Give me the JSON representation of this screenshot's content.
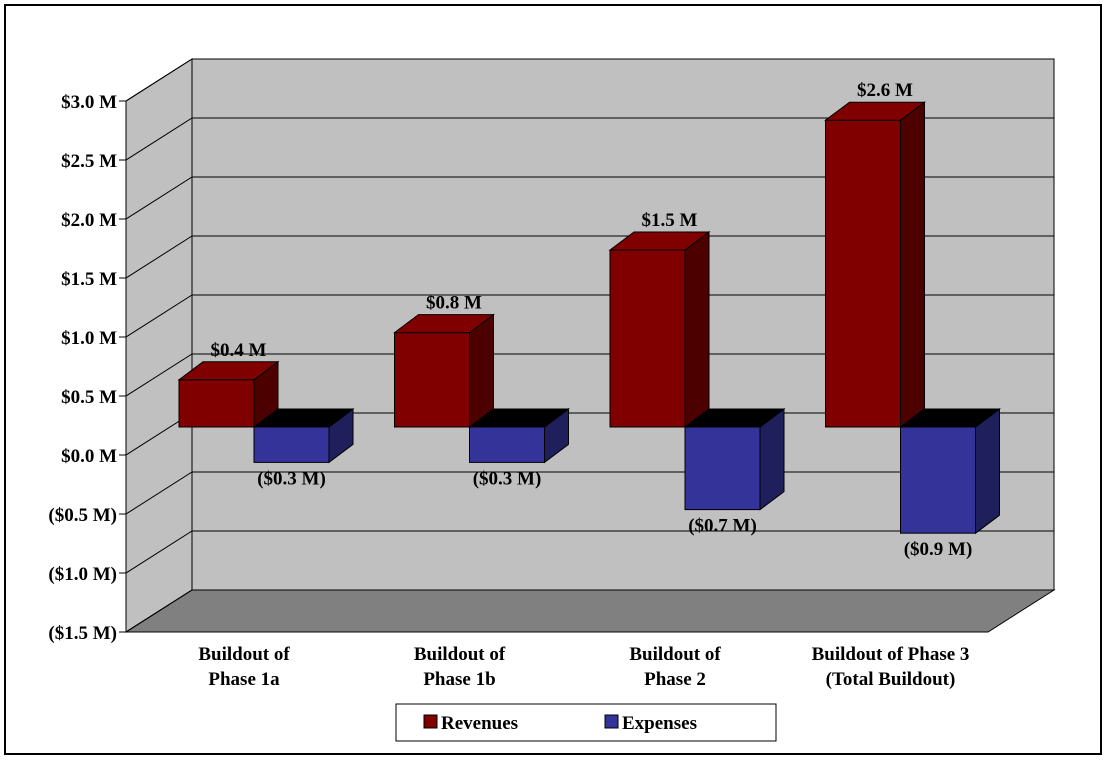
{
  "chart_data": {
    "type": "bar",
    "categories": [
      [
        "Buildout of",
        "Phase 1a"
      ],
      [
        "Buildout of",
        "Phase 1b"
      ],
      [
        "Buildout of",
        "Phase 2"
      ],
      [
        "Buildout of Phase 3",
        "(Total Buildout)"
      ]
    ],
    "series": [
      {
        "name": "Revenues",
        "values": [
          0.4,
          0.8,
          1.5,
          2.6
        ],
        "labels": [
          "$0.4 M",
          "$0.8 M",
          "$1.5 M",
          "$2.6 M"
        ],
        "color": "#800000"
      },
      {
        "name": "Expenses",
        "values": [
          -0.3,
          -0.3,
          -0.7,
          -0.9
        ],
        "labels": [
          "($0.3 M)",
          "($0.3 M)",
          "($0.7 M)",
          "($0.9 M)"
        ],
        "color": "#333399"
      }
    ],
    "yticks": [
      3.0,
      2.5,
      2.0,
      1.5,
      1.0,
      0.5,
      0.0,
      -0.5,
      -1.0,
      -1.5
    ],
    "ytick_labels": [
      "$3.0 M",
      "$2.5 M",
      "$2.0 M",
      "$1.5 M",
      "$1.0 M",
      "$0.5 M",
      "$0.0 M",
      "($0.5 M)",
      "($1.0 M)",
      "($1.5 M)"
    ],
    "ylim": [
      -1.5,
      3.0
    ],
    "grid": true,
    "legend": "bottom"
  },
  "colors": {
    "revenues_front": "#800000",
    "revenues_side": "#4d0000",
    "expenses_front": "#333399",
    "expenses_side": "#1f1f5c",
    "wall": "#c0c0c0",
    "floor": "#808080"
  }
}
